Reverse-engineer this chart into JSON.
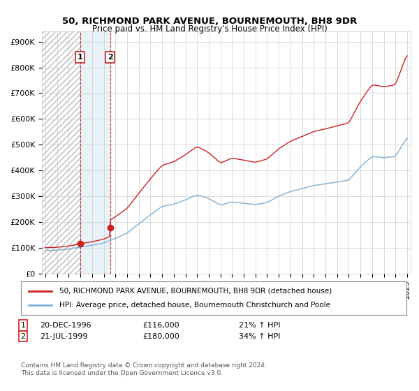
{
  "title1": "50, RICHMOND PARK AVENUE, BOURNEMOUTH, BH8 9DR",
  "title2": "Price paid vs. HM Land Registry's House Price Index (HPI)",
  "ylabel_ticks": [
    "£0",
    "£100K",
    "£200K",
    "£300K",
    "£400K",
    "£500K",
    "£600K",
    "£700K",
    "£800K",
    "£900K"
  ],
  "ytick_values": [
    0,
    100000,
    200000,
    300000,
    400000,
    500000,
    600000,
    700000,
    800000,
    900000
  ],
  "ylim": [
    0,
    940000
  ],
  "xlim_start": 1993.7,
  "xlim_end": 2025.3,
  "purchase1_date": 1996.97,
  "purchase1_price": 116000,
  "purchase2_date": 1999.55,
  "purchase2_price": 180000,
  "purchase1_label": "1",
  "purchase2_label": "2",
  "legend_line1": "50, RICHMOND PARK AVENUE, BOURNEMOUTH, BH8 9DR (detached house)",
  "legend_line2": "HPI: Average price, detached house, Bournemouth Christchurch and Poole",
  "footer": "Contains HM Land Registry data © Crown copyright and database right 2024.\nThis data is licensed under the Open Government Licence v3.0.",
  "hpi_color": "#7bafd4",
  "price_color": "#cc2222",
  "shading_color": "#ddeeff",
  "vline_color": "#cc2222",
  "xtick_years": [
    1994,
    1995,
    1996,
    1997,
    1998,
    1999,
    2000,
    2001,
    2002,
    2003,
    2004,
    2005,
    2006,
    2007,
    2008,
    2009,
    2010,
    2011,
    2012,
    2013,
    2014,
    2015,
    2016,
    2017,
    2018,
    2019,
    2020,
    2021,
    2022,
    2023,
    2024,
    2025
  ],
  "hpi_years": [
    1994.0,
    1994.083,
    1994.167,
    1994.25,
    1994.333,
    1994.417,
    1994.5,
    1994.583,
    1994.667,
    1994.75,
    1994.833,
    1994.917,
    1995.0,
    1995.083,
    1995.167,
    1995.25,
    1995.333,
    1995.417,
    1995.5,
    1995.583,
    1995.667,
    1995.75,
    1995.833,
    1995.917,
    1996.0,
    1996.083,
    1996.167,
    1996.25,
    1996.333,
    1996.417,
    1996.5,
    1996.583,
    1996.667,
    1996.75,
    1996.833,
    1996.917,
    1997.0,
    1997.083,
    1997.167,
    1997.25,
    1997.333,
    1997.417,
    1997.5,
    1997.583,
    1997.667,
    1997.75,
    1997.833,
    1997.917,
    1998.0,
    1998.083,
    1998.167,
    1998.25,
    1998.333,
    1998.417,
    1998.5,
    1998.583,
    1998.667,
    1998.75,
    1998.833,
    1998.917,
    1999.0,
    1999.083,
    1999.167,
    1999.25,
    1999.333,
    1999.417,
    1999.5,
    1999.583,
    1999.667,
    1999.75,
    1999.833,
    1999.917,
    2000.0,
    2000.083,
    2000.167,
    2000.25,
    2000.333,
    2000.417,
    2000.5,
    2000.583,
    2000.667,
    2000.75,
    2000.833,
    2000.917,
    2001.0,
    2001.083,
    2001.167,
    2001.25,
    2001.333,
    2001.417,
    2001.5,
    2001.583,
    2001.667,
    2001.75,
    2001.833,
    2001.917,
    2002.0,
    2002.083,
    2002.167,
    2002.25,
    2002.333,
    2002.417,
    2002.5,
    2002.583,
    2002.667,
    2002.75,
    2002.833,
    2002.917,
    2003.0,
    2003.083,
    2003.167,
    2003.25,
    2003.333,
    2003.417,
    2003.5,
    2003.583,
    2003.667,
    2003.75,
    2003.833,
    2003.917,
    2004.0,
    2004.083,
    2004.167,
    2004.25,
    2004.333,
    2004.417,
    2004.5,
    2004.583,
    2004.667,
    2004.75,
    2004.833,
    2004.917,
    2005.0,
    2005.083,
    2005.167,
    2005.25,
    2005.333,
    2005.417,
    2005.5,
    2005.583,
    2005.667,
    2005.75,
    2005.833,
    2005.917,
    2006.0,
    2006.083,
    2006.167,
    2006.25,
    2006.333,
    2006.417,
    2006.5,
    2006.583,
    2006.667,
    2006.75,
    2006.833,
    2006.917,
    2007.0,
    2007.083,
    2007.167,
    2007.25,
    2007.333,
    2007.417,
    2007.5,
    2007.583,
    2007.667,
    2007.75,
    2007.833,
    2007.917,
    2008.0,
    2008.083,
    2008.167,
    2008.25,
    2008.333,
    2008.417,
    2008.5,
    2008.583,
    2008.667,
    2008.75,
    2008.833,
    2008.917,
    2009.0,
    2009.083,
    2009.167,
    2009.25,
    2009.333,
    2009.417,
    2009.5,
    2009.583,
    2009.667,
    2009.75,
    2009.833,
    2009.917,
    2010.0,
    2010.083,
    2010.167,
    2010.25,
    2010.333,
    2010.417,
    2010.5,
    2010.583,
    2010.667,
    2010.75,
    2010.833,
    2010.917,
    2011.0,
    2011.083,
    2011.167,
    2011.25,
    2011.333,
    2011.417,
    2011.5,
    2011.583,
    2011.667,
    2011.75,
    2011.833,
    2011.917,
    2012.0,
    2012.083,
    2012.167,
    2012.25,
    2012.333,
    2012.417,
    2012.5,
    2012.583,
    2012.667,
    2012.75,
    2012.833,
    2012.917,
    2013.0,
    2013.083,
    2013.167,
    2013.25,
    2013.333,
    2013.417,
    2013.5,
    2013.583,
    2013.667,
    2013.75,
    2013.833,
    2013.917,
    2014.0,
    2014.083,
    2014.167,
    2014.25,
    2014.333,
    2014.417,
    2014.5,
    2014.583,
    2014.667,
    2014.75,
    2014.833,
    2014.917,
    2015.0,
    2015.083,
    2015.167,
    2015.25,
    2015.333,
    2015.417,
    2015.5,
    2015.583,
    2015.667,
    2015.75,
    2015.833,
    2015.917,
    2016.0,
    2016.083,
    2016.167,
    2016.25,
    2016.333,
    2016.417,
    2016.5,
    2016.583,
    2016.667,
    2016.75,
    2016.833,
    2016.917,
    2017.0,
    2017.083,
    2017.167,
    2017.25,
    2017.333,
    2017.417,
    2017.5,
    2017.583,
    2017.667,
    2017.75,
    2017.833,
    2017.917,
    2018.0,
    2018.083,
    2018.167,
    2018.25,
    2018.333,
    2018.417,
    2018.5,
    2018.583,
    2018.667,
    2018.75,
    2018.833,
    2018.917,
    2019.0,
    2019.083,
    2019.167,
    2019.25,
    2019.333,
    2019.417,
    2019.5,
    2019.583,
    2019.667,
    2019.75,
    2019.833,
    2019.917,
    2020.0,
    2020.083,
    2020.167,
    2020.25,
    2020.333,
    2020.417,
    2020.5,
    2020.583,
    2020.667,
    2020.75,
    2020.833,
    2020.917,
    2021.0,
    2021.083,
    2021.167,
    2021.25,
    2021.333,
    2021.417,
    2021.5,
    2021.583,
    2021.667,
    2021.75,
    2021.833,
    2021.917,
    2022.0,
    2022.083,
    2022.167,
    2022.25,
    2022.333,
    2022.417,
    2022.5,
    2022.583,
    2022.667,
    2022.75,
    2022.833,
    2022.917,
    2023.0,
    2023.083,
    2023.167,
    2023.25,
    2023.333,
    2023.417,
    2023.5,
    2023.583,
    2023.667,
    2023.75,
    2023.833,
    2023.917,
    2024.0,
    2024.083,
    2024.167,
    2024.25,
    2024.333,
    2024.417,
    2024.5,
    2024.583,
    2024.667,
    2024.75,
    2024.833,
    2024.917,
    2025.0
  ]
}
